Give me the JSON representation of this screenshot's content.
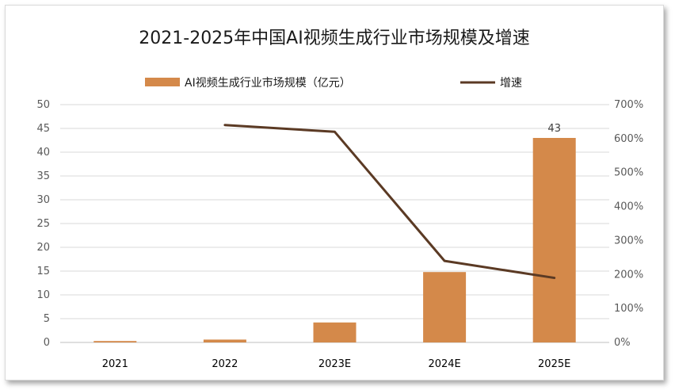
{
  "chart_data": {
    "type": "bar",
    "title": "2021-2025年中国AI视频生成行业市场规模及增速",
    "categories": [
      "2021",
      "2022",
      "2023E",
      "2024E",
      "2025E"
    ],
    "series": [
      {
        "name": "AI视频生成行业市场规模（亿元）",
        "type": "bar",
        "axis": "left",
        "color": "#D4894A",
        "values": [
          0.3,
          0.6,
          4.2,
          14.8,
          43
        ]
      },
      {
        "name": "增速",
        "type": "line",
        "axis": "right",
        "color": "#5B3A24",
        "values": [
          null,
          6.4,
          6.2,
          2.4,
          1.9
        ]
      }
    ],
    "data_labels": [
      {
        "category": "2025E",
        "text": "43"
      }
    ],
    "y_left": {
      "min": 0,
      "max": 50,
      "step": 5,
      "tick_labels": [
        "0",
        "5",
        "10",
        "15",
        "20",
        "25",
        "30",
        "35",
        "40",
        "45",
        "50"
      ]
    },
    "y_right": {
      "min": 0,
      "max": 7,
      "step": 1,
      "tick_labels": [
        "0%",
        "100%",
        "200%",
        "300%",
        "400%",
        "500%",
        "600%",
        "700%"
      ]
    },
    "grid": true,
    "legend_position": "top"
  }
}
